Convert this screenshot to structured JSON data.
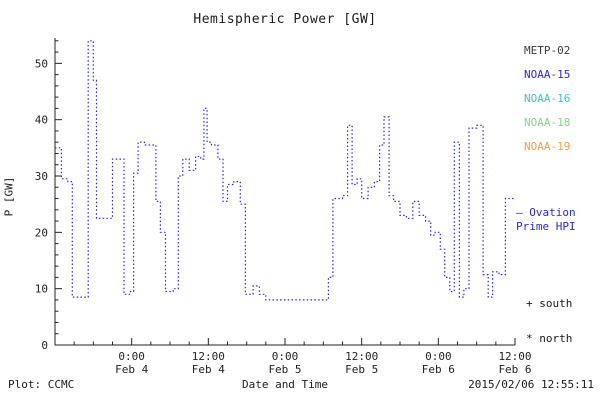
{
  "title": "Hemispheric Power [GW]",
  "axes": {
    "ylabel": "P [GW]",
    "xlabel": "Date and Time",
    "yticks": [
      0,
      10,
      20,
      30,
      40,
      50
    ],
    "ylim": [
      0,
      54.5
    ],
    "xlim_hours": [
      0,
      72
    ],
    "xticks": [
      {
        "hour": 12,
        "top": "0:00",
        "bottom": "Feb 4"
      },
      {
        "hour": 24,
        "top": "12:00",
        "bottom": "Feb 4"
      },
      {
        "hour": 36,
        "top": "0:00",
        "bottom": "Feb 5"
      },
      {
        "hour": 48,
        "top": "12:00",
        "bottom": "Feb 5"
      },
      {
        "hour": 60,
        "top": "0:00",
        "bottom": "Feb 6"
      },
      {
        "hour": 72,
        "top": "12:00",
        "bottom": "Feb 6"
      }
    ]
  },
  "legend": {
    "satellites": [
      {
        "label": "METP-02",
        "color": "#3a3a3a"
      },
      {
        "label": "NOAA-15",
        "color": "#2a2ac8"
      },
      {
        "label": "NOAA-16",
        "color": "#3cc0d8"
      },
      {
        "label": "NOAA-18",
        "color": "#86d486"
      },
      {
        "label": "NOAA-19",
        "color": "#f0a040"
      }
    ],
    "ovation_line1": "— Ovation",
    "ovation_line2": "Prime HPI",
    "south_marker": "+ south",
    "north_marker": "* north"
  },
  "footer": {
    "left": "Plot: CCMC",
    "center": "Date and Time",
    "right": "2015/02/06 12:55:11"
  },
  "chart_data": {
    "type": "line",
    "title": "Hemispheric Power [GW]",
    "xlabel": "Date and Time",
    "ylabel": "P [GW]",
    "ylim": [
      0,
      54.5
    ],
    "line_style": "dotted-step",
    "color": "#2a2ac8",
    "x_unit": "hours since 2015-02-03 12:00 UT",
    "series_name": "Hemispheric Power (NOAA-15, north/south)",
    "points": [
      [
        0,
        35
      ],
      [
        1,
        29.5
      ],
      [
        2,
        29
      ],
      [
        2.7,
        8.5
      ],
      [
        4.5,
        8.5
      ],
      [
        5.2,
        54
      ],
      [
        6,
        47
      ],
      [
        6.5,
        22.5
      ],
      [
        7.5,
        22.5
      ],
      [
        9,
        33
      ],
      [
        10,
        33
      ],
      [
        10.8,
        9
      ],
      [
        11.8,
        9.5
      ],
      [
        12.3,
        30.5
      ],
      [
        13,
        36
      ],
      [
        14,
        35.5
      ],
      [
        15,
        35.5
      ],
      [
        15.8,
        25.5
      ],
      [
        16.5,
        20
      ],
      [
        17.3,
        9.5
      ],
      [
        18.5,
        10
      ],
      [
        19.3,
        30
      ],
      [
        20,
        33
      ],
      [
        21,
        31
      ],
      [
        22,
        33.5
      ],
      [
        22.8,
        33
      ],
      [
        23.3,
        42
      ],
      [
        23.8,
        36
      ],
      [
        24.5,
        35.5
      ],
      [
        25.5,
        33
      ],
      [
        26.3,
        25.5
      ],
      [
        27,
        28.5
      ],
      [
        28,
        29
      ],
      [
        29,
        25
      ],
      [
        29.8,
        9
      ],
      [
        31,
        10.5
      ],
      [
        32,
        9
      ],
      [
        33,
        8
      ],
      [
        42,
        8
      ],
      [
        42.8,
        12
      ],
      [
        43.5,
        26
      ],
      [
        45,
        26.5
      ],
      [
        45.8,
        39
      ],
      [
        46.5,
        28.5
      ],
      [
        47.3,
        29.5
      ],
      [
        48,
        26
      ],
      [
        49,
        28
      ],
      [
        50,
        29
      ],
      [
        50.8,
        35.5
      ],
      [
        51.5,
        40.5
      ],
      [
        52.3,
        26.5
      ],
      [
        53,
        25.5
      ],
      [
        54,
        23
      ],
      [
        55,
        22.5
      ],
      [
        56,
        25.5
      ],
      [
        57,
        23
      ],
      [
        58,
        22
      ],
      [
        58.8,
        19.5
      ],
      [
        59.5,
        20
      ],
      [
        60.3,
        17
      ],
      [
        61,
        12
      ],
      [
        61.8,
        9.5
      ],
      [
        62.5,
        36
      ],
      [
        63.3,
        8.5
      ],
      [
        64,
        10
      ],
      [
        64.8,
        38.5
      ],
      [
        66,
        39
      ],
      [
        67,
        12.5
      ],
      [
        67.8,
        8.5
      ],
      [
        68.5,
        13
      ],
      [
        69.5,
        12.5
      ],
      [
        70.5,
        26
      ],
      [
        71.9,
        26
      ]
    ]
  }
}
